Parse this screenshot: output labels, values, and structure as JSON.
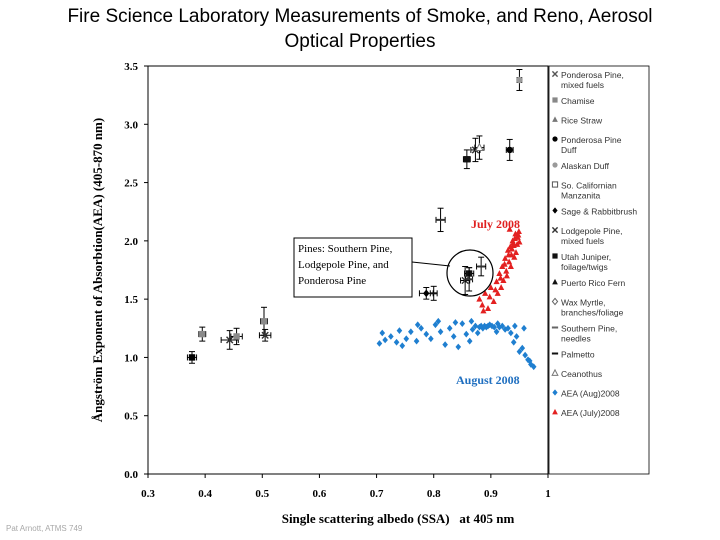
{
  "slide": {
    "title_line1": "Fire Science Laboratory Measurements of Smoke, and Reno, Aerosol",
    "title_line2": "Optical Properties",
    "footer": "Pat Arnott, ATMS 749"
  },
  "chart_data": {
    "type": "scatter",
    "xlabel": "Single scattering albedo (SSA)   at 405 nm",
    "ylabel": "Ångström Exponent of Absorbtion(AEA) (405-870 nm)",
    "xlim": [
      0.3,
      1.0
    ],
    "ylim": [
      0.0,
      3.5
    ],
    "xticks": [
      "0.3",
      "0.4",
      "0.5",
      "0.6",
      "0.7",
      "0.8",
      "0.9",
      "1"
    ],
    "yticks": [
      "0.0",
      "0.5",
      "1.0",
      "1.5",
      "2.0",
      "2.5",
      "3.0",
      "3.5"
    ],
    "grid": false,
    "legend_position": "right",
    "annotations": {
      "july": "July 2008",
      "august": "August 2008",
      "callout_line1": "Pines: Southern Pine,",
      "callout_line2": "Lodgepole Pine, and",
      "callout_line3": "Ponderosa Pine"
    },
    "legend": [
      {
        "label": [
          "Ponderosa Pine,",
          "mixed fuels"
        ],
        "marker": "x",
        "color": "#555555"
      },
      {
        "label": [
          "Chamise"
        ],
        "marker": "square",
        "color": "#888888"
      },
      {
        "label": [
          "Rice Straw"
        ],
        "marker": "triangle",
        "color": "#777777"
      },
      {
        "label": [
          "Ponderosa Pine",
          "Duff"
        ],
        "marker": "circle",
        "color": "#000000"
      },
      {
        "label": [
          "Alaskan Duff"
        ],
        "marker": "circle",
        "color": "#9a9a9a"
      },
      {
        "label": [
          "So. Californian",
          "Manzanita"
        ],
        "marker": "square-open",
        "color": "#555555"
      },
      {
        "label": [
          "Sage & Rabbitbrush"
        ],
        "marker": "diamond",
        "color": "#000000"
      },
      {
        "label": [
          "Lodgepole Pine,",
          "mixed fuels"
        ],
        "marker": "x",
        "color": "#333333"
      },
      {
        "label": [
          "Utah Juniper,",
          "foilage/twigs"
        ],
        "marker": "square",
        "color": "#111111"
      },
      {
        "label": [
          "Puerto Rico Fern"
        ],
        "marker": "triangle",
        "color": "#111111"
      },
      {
        "label": [
          "Wax Myrtle,",
          "branches/foliage"
        ],
        "marker": "diamond-open",
        "color": "#666666"
      },
      {
        "label": [
          "Southern Pine,",
          "needles"
        ],
        "marker": "dash",
        "color": "#666666"
      },
      {
        "label": [
          "Palmetto"
        ],
        "marker": "dash",
        "color": "#111111"
      },
      {
        "label": [
          "Ceanothus"
        ],
        "marker": "triangle-open",
        "color": "#777777"
      },
      {
        "label": [
          "AEA (Aug)2008"
        ],
        "marker": "diamond",
        "color": "#1f7fd0"
      },
      {
        "label": [
          "AEA (July)2008"
        ],
        "marker": "triangle",
        "color": "#e32020"
      }
    ],
    "lab_points": [
      {
        "x": 0.377,
        "y": 1.0,
        "xerr": 0.008,
        "yerr": 0.05,
        "marker": "square",
        "color": "#000000"
      },
      {
        "x": 0.395,
        "y": 1.2,
        "xerr": 0.006,
        "yerr": 0.06,
        "marker": "square",
        "color": "#8a8a8a"
      },
      {
        "x": 0.443,
        "y": 1.15,
        "xerr": 0.015,
        "yerr": 0.08,
        "marker": "x",
        "color": "#333333"
      },
      {
        "x": 0.455,
        "y": 1.18,
        "xerr": 0.01,
        "yerr": 0.07,
        "marker": "square",
        "color": "#8a8a8a"
      },
      {
        "x": 0.503,
        "y": 1.31,
        "xerr": 0.006,
        "yerr": 0.12,
        "marker": "square",
        "color": "#8a8a8a"
      },
      {
        "x": 0.505,
        "y": 1.19,
        "xerr": 0.01,
        "yerr": 0.05,
        "marker": "x",
        "color": "#333333"
      },
      {
        "x": 0.787,
        "y": 1.55,
        "xerr": 0.012,
        "yerr": 0.05,
        "marker": "diamond",
        "color": "#000000"
      },
      {
        "x": 0.8,
        "y": 1.55,
        "xerr": 0.006,
        "yerr": 0.06,
        "marker": "dash",
        "color": "#111111"
      },
      {
        "x": 0.812,
        "y": 2.18,
        "xerr": 0.008,
        "yerr": 0.1,
        "marker": "dash",
        "color": "#333333"
      },
      {
        "x": 0.855,
        "y": 1.66,
        "xerr": 0.008,
        "yerr": 0.12,
        "marker": "x",
        "color": "#333333"
      },
      {
        "x": 0.862,
        "y": 1.72,
        "xerr": 0.008,
        "yerr": 0.05,
        "marker": "square",
        "color": "#111111"
      },
      {
        "x": 0.862,
        "y": 1.67,
        "xerr": 0.006,
        "yerr": 0.1,
        "marker": "dash",
        "color": "#333333"
      },
      {
        "x": 0.883,
        "y": 1.78,
        "xerr": 0.008,
        "yerr": 0.08,
        "marker": "dash",
        "color": "#333333"
      },
      {
        "x": 0.858,
        "y": 2.7,
        "xerr": 0.006,
        "yerr": 0.08,
        "marker": "square",
        "color": "#111111"
      },
      {
        "x": 0.873,
        "y": 2.78,
        "xerr": 0.008,
        "yerr": 0.1,
        "marker": "x",
        "color": "#333333"
      },
      {
        "x": 0.88,
        "y": 2.8,
        "xerr": 0.008,
        "yerr": 0.1,
        "marker": "triangle-open",
        "color": "#777777"
      },
      {
        "x": 0.933,
        "y": 2.78,
        "xerr": 0.006,
        "yerr": 0.09,
        "marker": "circle",
        "color": "#000000"
      },
      {
        "x": 0.95,
        "y": 3.38,
        "xerr": 0.004,
        "yerr": 0.09,
        "marker": "circle",
        "color": "#9a9a9a"
      }
    ],
    "series": [
      {
        "name": "AEA (Aug)2008",
        "marker": "diamond",
        "color": "#1f7fd0",
        "x": [
          0.705,
          0.715,
          0.725,
          0.735,
          0.745,
          0.752,
          0.76,
          0.77,
          0.778,
          0.787,
          0.795,
          0.803,
          0.812,
          0.82,
          0.828,
          0.835,
          0.843,
          0.85,
          0.857,
          0.863,
          0.868,
          0.873,
          0.877,
          0.88,
          0.883,
          0.886,
          0.889,
          0.892,
          0.895,
          0.898,
          0.902,
          0.906,
          0.91,
          0.915,
          0.92,
          0.925,
          0.93,
          0.935,
          0.94,
          0.945,
          0.95,
          0.955,
          0.96,
          0.965,
          0.97,
          0.975,
          0.71,
          0.74,
          0.772,
          0.808,
          0.838,
          0.866,
          0.912,
          0.942,
          0.958,
          0.968
        ],
        "y": [
          1.12,
          1.15,
          1.18,
          1.13,
          1.1,
          1.16,
          1.22,
          1.14,
          1.25,
          1.2,
          1.16,
          1.28,
          1.22,
          1.11,
          1.25,
          1.18,
          1.09,
          1.29,
          1.2,
          1.14,
          1.24,
          1.27,
          1.21,
          1.26,
          1.27,
          1.25,
          1.27,
          1.26,
          1.27,
          1.28,
          1.27,
          1.26,
          1.22,
          1.26,
          1.27,
          1.24,
          1.25,
          1.21,
          1.13,
          1.18,
          1.05,
          1.08,
          1.02,
          0.98,
          0.94,
          0.92,
          1.21,
          1.23,
          1.28,
          1.31,
          1.3,
          1.31,
          1.29,
          1.27,
          1.25,
          0.97
        ]
      },
      {
        "name": "AEA (July)2008",
        "marker": "triangle",
        "color": "#e32020",
        "x": [
          0.88,
          0.885,
          0.89,
          0.895,
          0.9,
          0.905,
          0.91,
          0.912,
          0.915,
          0.918,
          0.92,
          0.922,
          0.925,
          0.927,
          0.93,
          0.932,
          0.934,
          0.936,
          0.938,
          0.94,
          0.942,
          0.944,
          0.946,
          0.948,
          0.95,
          0.887,
          0.898,
          0.908,
          0.917,
          0.924,
          0.931,
          0.937,
          0.943,
          0.949,
          0.928,
          0.935,
          0.941,
          0.947,
          0.933,
          0.939
        ],
        "y": [
          1.5,
          1.45,
          1.55,
          1.42,
          1.6,
          1.48,
          1.65,
          1.55,
          1.72,
          1.6,
          1.78,
          1.66,
          1.85,
          1.74,
          1.92,
          1.82,
          1.95,
          1.88,
          2.0,
          1.96,
          2.02,
          1.9,
          1.97,
          2.05,
          1.99,
          1.4,
          1.52,
          1.58,
          1.68,
          1.8,
          1.88,
          1.93,
          2.06,
          2.08,
          1.7,
          1.78,
          1.86,
          2.03,
          2.1,
          1.98
        ]
      }
    ]
  }
}
